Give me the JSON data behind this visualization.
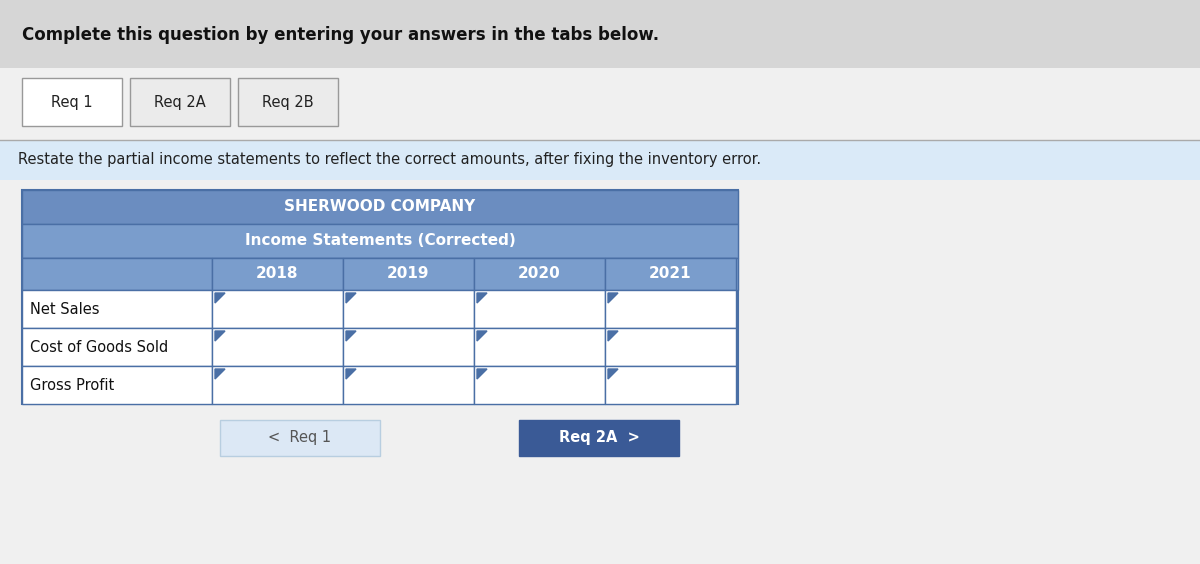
{
  "header_text": "Complete this question by entering your answers in the tabs below.",
  "header_bg": "#d6d6d6",
  "overall_bg": "#f0f0f0",
  "tabs": [
    "Req 1",
    "Req 2A",
    "Req 2B"
  ],
  "tab_active_bg": "#ffffff",
  "tab_inactive_bg": "#ebebeb",
  "tab_border_color": "#999999",
  "instruction_text": "Restate the partial income statements to reflect the correct amounts, after fixing the inventory error.",
  "instruction_bg": "#daeaf8",
  "table_title_bg": "#6b8dc0",
  "table_subtitle_bg": "#7a9dcc",
  "table_header_bg": "#7a9dcc",
  "table_border_color": "#4a6fa5",
  "table_row_bg": "#ffffff",
  "company_title": "SHERWOOD COMPANY",
  "table_subtitle": "Income Statements (Corrected)",
  "years": [
    "2018",
    "2019",
    "2020",
    "2021"
  ],
  "row_labels": [
    "Net Sales",
    "Cost of Goods Sold",
    "Gross Profit"
  ],
  "nav_left_text": "<  Req 1",
  "nav_left_bg": "#dce8f5",
  "nav_left_text_color": "#555555",
  "nav_right_text": "Req 2A  >",
  "nav_right_bg": "#3a5a96",
  "nav_right_text_color": "#ffffff",
  "tri_color": "#4a6fa5",
  "text_color_dark": "#111111",
  "text_color_white": "#ffffff"
}
